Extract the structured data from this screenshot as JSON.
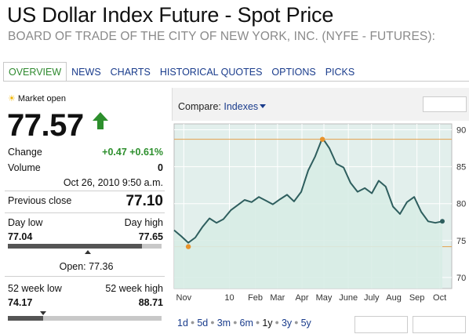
{
  "header": {
    "title": "US Dollar Index Future - Spot Price",
    "subtitle": "BOARD OF TRADE OF THE CITY OF NEW YORK, INC. (NYFE - FUTURES):"
  },
  "tabs": [
    {
      "label": "OVERVIEW",
      "active": true
    },
    {
      "label": "NEWS"
    },
    {
      "label": "CHARTS"
    },
    {
      "label": "HISTORICAL QUOTES"
    },
    {
      "label": "OPTIONS"
    },
    {
      "label": "PICKS"
    }
  ],
  "quote": {
    "market_status": "Market open",
    "price": "77.57",
    "change_label": "Change",
    "change_value": "+0.47 +0.61%",
    "volume_label": "Volume",
    "volume_value": "0",
    "timestamp": "Oct 26, 2010 9:50 a.m.",
    "prev_close_label": "Previous close",
    "prev_close_value": "77.10",
    "day_low_label": "Day low",
    "day_high_label": "Day high",
    "day_low": "77.04",
    "day_high": "77.65",
    "day_range_fraction": 0.87,
    "open_text": "Open: 77.36",
    "open_fraction": 0.52,
    "wk52_low_label": "52 week low",
    "wk52_high_label": "52 week high",
    "wk52_low": "74.17",
    "wk52_high": "88.71",
    "wk52_fraction": 0.23,
    "accent_green": "#2d8f2d"
  },
  "chart": {
    "compare_label": "Compare:",
    "compare_dropdown": "Indexes",
    "periods": [
      "1d",
      "5d",
      "3m",
      "6m",
      "1y",
      "3y",
      "5y"
    ],
    "selected_period": "1y"
  },
  "chart_data": {
    "type": "area",
    "title": "",
    "xlabel": "",
    "ylabel": "",
    "ylim": [
      68.5,
      90.8
    ],
    "yticks": [
      70,
      75,
      80,
      85,
      90
    ],
    "x_tick_labels": [
      "Nov",
      "10",
      "Feb",
      "Mar",
      "Apr",
      "May",
      "June",
      "July",
      "Aug",
      "Sep",
      "Oct"
    ],
    "x_tick_positions": [
      0.055,
      0.24,
      0.345,
      0.435,
      0.534,
      0.623,
      0.722,
      0.816,
      0.906,
      1.0,
      1.092
    ],
    "x": [
      0.0,
      0.026,
      0.053,
      0.079,
      0.105,
      0.132,
      0.158,
      0.184,
      0.211,
      0.237,
      0.263,
      0.289,
      0.316,
      0.342,
      0.368,
      0.395,
      0.421,
      0.447,
      0.474,
      0.5,
      0.526,
      0.553,
      0.579,
      0.605,
      0.632,
      0.658,
      0.684,
      0.711,
      0.737,
      0.763,
      0.789,
      0.816,
      0.842,
      0.868,
      0.895,
      0.921,
      0.947,
      0.974,
      1.0
    ],
    "values": [
      76.4,
      75.6,
      74.7,
      75.4,
      76.8,
      78.0,
      77.4,
      77.9,
      79.1,
      79.8,
      80.5,
      80.2,
      80.9,
      80.4,
      79.9,
      80.6,
      81.2,
      80.3,
      81.6,
      84.5,
      86.4,
      88.9,
      87.5,
      85.4,
      84.9,
      82.8,
      81.6,
      82.1,
      81.4,
      83.1,
      82.3,
      79.6,
      78.6,
      80.2,
      80.9,
      78.9,
      77.6,
      77.4,
      77.6
    ],
    "series": [
      {
        "values_ref": "values",
        "color": "#2e5e5e",
        "fill": "#d8ece6"
      }
    ],
    "reference_lines": [
      {
        "value": 88.71,
        "color": "#e3a04a"
      },
      {
        "value": 74.17,
        "color": "#e3a04a"
      }
    ],
    "markers": [
      {
        "x_index": 21,
        "value": 88.71,
        "color": "#e8932c"
      },
      {
        "x_index": 2,
        "value": 74.17,
        "color": "#e8932c"
      }
    ],
    "grid": true,
    "background": "#e2efec"
  }
}
